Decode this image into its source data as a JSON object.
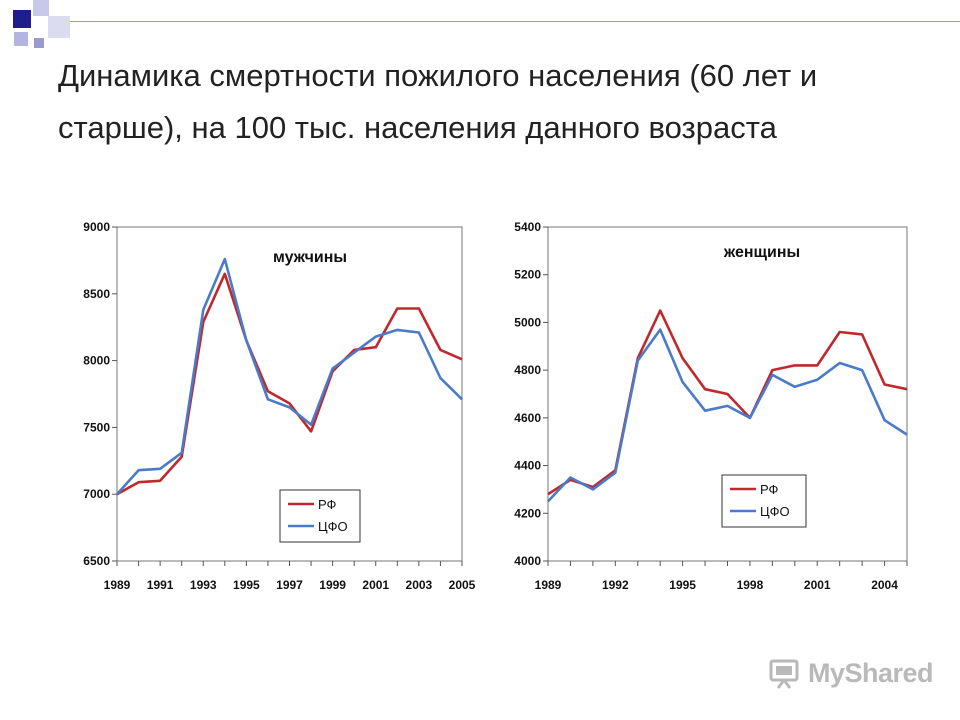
{
  "title": "Динамика смертности пожилого населения (60 лет и старше), на 100 тыс. населения данного возраста",
  "watermark": "MyShared",
  "colors": {
    "rf": "#c0282d",
    "cfo": "#4a7bc8",
    "accent_dark": "#1f1f8c",
    "accent_light": "#9a9ad0"
  },
  "chart_data": [
    {
      "type": "line",
      "title": "мужчины",
      "xlabel": "",
      "ylabel": "",
      "x": [
        1989,
        1990,
        1991,
        1992,
        1993,
        1994,
        1995,
        1996,
        1997,
        1998,
        1999,
        2000,
        2001,
        2002,
        2003,
        2004,
        2005
      ],
      "x_ticks": [
        "1989",
        "1991",
        "1993",
        "1995",
        "1997",
        "1999",
        "2001",
        "2003",
        "2005"
      ],
      "ylim": [
        6500,
        9000
      ],
      "y_ticks": [
        6500,
        7000,
        7500,
        8000,
        8500,
        9000
      ],
      "grid": false,
      "legend": "bottom-right",
      "series": [
        {
          "name": "РФ",
          "color": "#c0282d",
          "values": [
            7000,
            7090,
            7100,
            7280,
            8290,
            8650,
            8150,
            7770,
            7680,
            7470,
            7920,
            8080,
            8100,
            8390,
            8390,
            8080,
            8010
          ]
        },
        {
          "name": "ЦФО",
          "color": "#4a7bc8",
          "values": [
            7000,
            7180,
            7190,
            7310,
            8380,
            8760,
            8150,
            7710,
            7650,
            7520,
            7940,
            8060,
            8180,
            8230,
            8210,
            7870,
            7710
          ]
        }
      ]
    },
    {
      "type": "line",
      "title": "женщины",
      "xlabel": "",
      "ylabel": "",
      "x": [
        1989,
        1990,
        1991,
        1992,
        1993,
        1994,
        1995,
        1996,
        1997,
        1998,
        1999,
        2000,
        2001,
        2002,
        2003,
        2004,
        2005
      ],
      "x_ticks": [
        "1989",
        "1992",
        "1995",
        "1998",
        "2001",
        "2004"
      ],
      "ylim": [
        4000,
        5400
      ],
      "y_ticks": [
        4000,
        4200,
        4400,
        4600,
        4800,
        5000,
        5200,
        5400
      ],
      "grid": false,
      "legend": "bottom-right",
      "series": [
        {
          "name": "РФ",
          "color": "#c0282d",
          "values": [
            4280,
            4340,
            4310,
            4380,
            4850,
            5050,
            4850,
            4720,
            4700,
            4600,
            4800,
            4820,
            4820,
            4960,
            4950,
            4740,
            4720
          ]
        },
        {
          "name": "ЦФО",
          "color": "#4a7bc8",
          "values": [
            4250,
            4350,
            4300,
            4370,
            4840,
            4970,
            4750,
            4630,
            4650,
            4600,
            4780,
            4730,
            4760,
            4830,
            4800,
            4590,
            4530
          ]
        }
      ]
    }
  ]
}
